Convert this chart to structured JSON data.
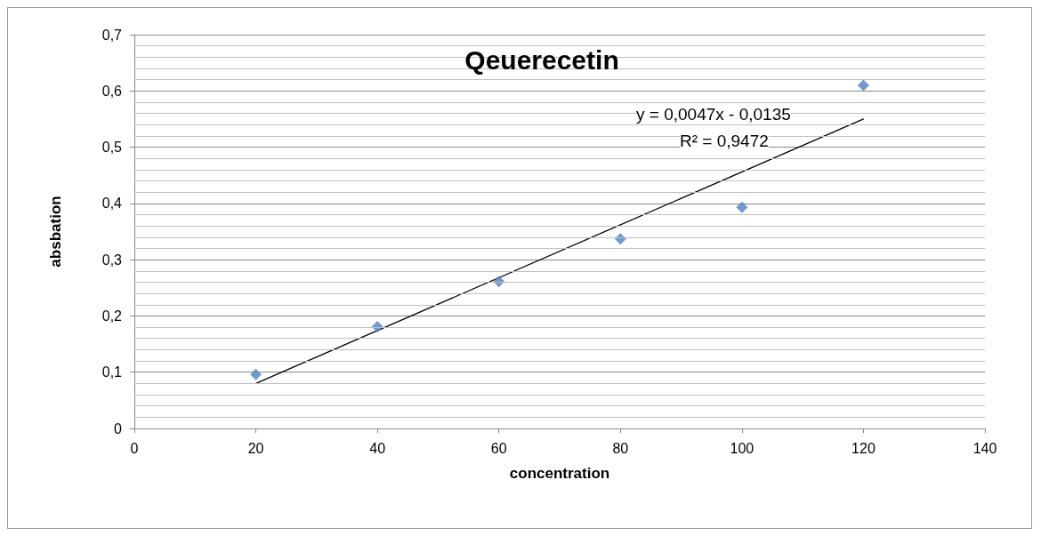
{
  "chart_data": {
    "type": "scatter",
    "title": "Qeuerecetin",
    "xlabel": "concentration",
    "ylabel": "absbation",
    "xlim": [
      0,
      140
    ],
    "xticks": [
      0,
      20,
      40,
      60,
      80,
      100,
      120,
      140
    ],
    "ylim": [
      0,
      0.7
    ],
    "yticks": [
      0,
      {
        "value": 0.1,
        "label": "0,1"
      },
      {
        "value": 0.2,
        "label": "0,2"
      },
      {
        "value": 0.3,
        "label": "0,3"
      },
      {
        "value": 0.4,
        "label": "0,4"
      },
      {
        "value": 0.5,
        "label": "0,5"
      },
      {
        "value": 0.6,
        "label": "0,6"
      },
      {
        "value": 0.7,
        "label": "0,7"
      }
    ],
    "series": [
      {
        "color": "#4f81bd",
        "x": [
          20,
          40,
          60,
          80,
          100,
          120
        ],
        "values": [
          0.096,
          0.181,
          0.261,
          0.337,
          0.393,
          0.61
        ],
        "marker": "diamond"
      },
      {
        "type": "line",
        "color": "#000000",
        "x": [
          20,
          120
        ],
        "values": [
          0.08,
          0.55
        ],
        "marker": "none",
        "line_style": "solid"
      }
    ],
    "annotations": [
      "y = 0,0047x - 0,0135",
      "R² = 0,9472"
    ],
    "grid": "y"
  }
}
